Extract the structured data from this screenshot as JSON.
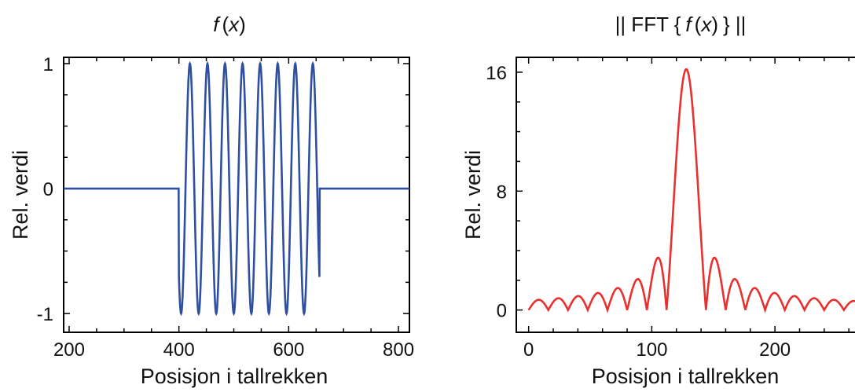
{
  "charts": [
    {
      "title_fn": "f",
      "title_arg": "x",
      "xlabel": "Posisjon i tallrekken",
      "ylabel": "Rel. verdi",
      "xticks": [
        "200",
        "400",
        "600",
        "800"
      ],
      "yticks": [
        "1",
        "0",
        "-1"
      ],
      "line_color": "#2f4fa0"
    },
    {
      "title_prefix": "|| FFT {",
      "title_fn": "f",
      "title_arg": "x",
      "title_suffix": "} ||",
      "xlabel": "Posisjon i tallrekken",
      "ylabel": "Rel. verdi",
      "xticks": [
        "0",
        "100",
        "200"
      ],
      "yticks": [
        "16",
        "8",
        "0"
      ],
      "line_color": "#e8312f"
    }
  ],
  "chart_data": [
    {
      "type": "line",
      "xlim": [
        190,
        820
      ],
      "ylim": [
        -1.15,
        1.05
      ],
      "xticks": [
        200,
        400,
        600,
        800
      ],
      "yticks": [
        1,
        0,
        -1
      ],
      "series": [
        {
          "function": "windowed sine",
          "zero_before_x": 400,
          "zero_after_x": 656,
          "first_peak_x": 420,
          "period_x": 32,
          "amplitude": 1,
          "cycles": 8
        }
      ]
    },
    {
      "type": "line",
      "xlim": [
        -10,
        265
      ],
      "ylim": [
        -1.5,
        17
      ],
      "xticks": [
        0,
        100,
        200
      ],
      "yticks": [
        16,
        8,
        0
      ],
      "series": [
        {
          "function": "abs sinc",
          "peak_x": 128,
          "peak_y": 16.2,
          "main_lobe_half_width": 16,
          "x_range": [
            0,
            265
          ]
        }
      ]
    }
  ]
}
